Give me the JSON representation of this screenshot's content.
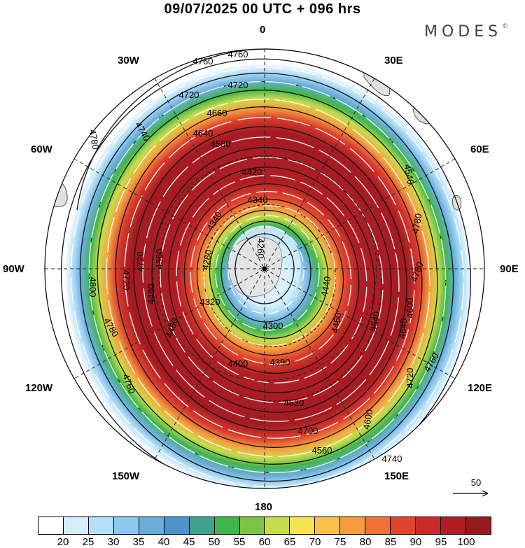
{
  "title": "09/07/2025  00 UTC  + 096 hrs",
  "brand": "MODES",
  "brand_mark": "©",
  "longitude_labels": {
    "lon_0": "0",
    "lon_30e": "30E",
    "lon_60e": "60E",
    "lon_90e": "90E",
    "lon_120e": "120E",
    "lon_150e": "150E",
    "lon_180": "180",
    "lon_150w": "150W",
    "lon_120w": "120W",
    "lon_90w": "90W",
    "lon_60w": "60W",
    "lon_30w": "30W"
  },
  "contour_labels": [
    "4760",
    "4760",
    "4720",
    "4720",
    "4660",
    "4740",
    "4640",
    "4780",
    "4560",
    "4420",
    "4340",
    "4340",
    "4260",
    "4280",
    "4360",
    "4320",
    "4300",
    "4390",
    "4400",
    "4440",
    "4460",
    "4540",
    "4600",
    "4640",
    "4740",
    "4720",
    "4760",
    "4780",
    "4800",
    "4720",
    "4780",
    "4760",
    "4620",
    "4700",
    "4460",
    "4480",
    "4560",
    "4720",
    "4600",
    "4780",
    "4640"
  ],
  "vector_reference": "50",
  "colorbar": {
    "labels": [
      "20",
      "25",
      "30",
      "35",
      "40",
      "45",
      "50",
      "55",
      "60",
      "65",
      "70",
      "75",
      "80",
      "85",
      "90",
      "95",
      "100"
    ],
    "colors": [
      "#ffffff",
      "#d4eefb",
      "#b5e0f7",
      "#8cc9ee",
      "#6aaede",
      "#4e93c9",
      "#3fa28c",
      "#40b54d",
      "#7cc446",
      "#c6dc4a",
      "#f5e353",
      "#fcc04a",
      "#f89a3e",
      "#f07136",
      "#e0442e",
      "#c92a2a",
      "#b01e24",
      "#931a1e"
    ]
  }
}
